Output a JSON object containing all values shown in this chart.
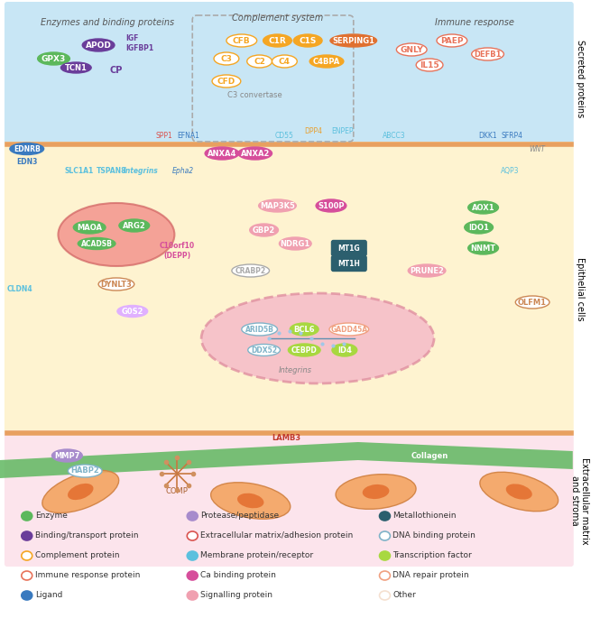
{
  "fig_width": 6.55,
  "fig_height": 6.85,
  "bg_top": "#d4eaf5",
  "bg_mid": "#fdf0e0",
  "bg_bot": "#fce4ec",
  "legend_bg": "#fce4ec",
  "section_labels": {
    "secreted": "Secreted proteins",
    "epithelial": "Epithelial cells",
    "extracellular": "Extracellular matrix\nand stroma"
  },
  "legend_items": [
    {
      "label": "Enzyme",
      "color": "#5cb85c",
      "filled": true
    },
    {
      "label": "Binding/transport protein",
      "color": "#6a3d9a",
      "filled": true
    },
    {
      "label": "Complement protein",
      "color": "#f5a623",
      "filled": false
    },
    {
      "label": "Immune response protein",
      "color": "#e8735a",
      "filled": false
    },
    {
      "label": "Ligand",
      "color": "#3a7abf",
      "filled": true
    },
    {
      "label": "Protease/peptidase",
      "color": "#a78bcc",
      "filled": true
    },
    {
      "label": "Extracellular matrix/adhesion protein",
      "color": "#d9534f",
      "filled": false
    },
    {
      "label": "Membrane protein/receptor",
      "color": "#5bc0de",
      "filled": true
    },
    {
      "label": "Ca binding protein",
      "color": "#d64e9b",
      "filled": true
    },
    {
      "label": "Signalling protein",
      "color": "#f0a0b0",
      "filled": true
    },
    {
      "label": "Metallothionein",
      "color": "#2c5f6e",
      "filled": true
    },
    {
      "label": "DNA binding protein",
      "color": "#7fb3c8",
      "filled": false
    },
    {
      "label": "Transcription factor",
      "color": "#a8d840",
      "filled": true
    },
    {
      "label": "DNA repair protein",
      "color": "#f0a080",
      "filled": false
    },
    {
      "label": "Other",
      "color": "#f5e0d0",
      "filled": false
    }
  ]
}
